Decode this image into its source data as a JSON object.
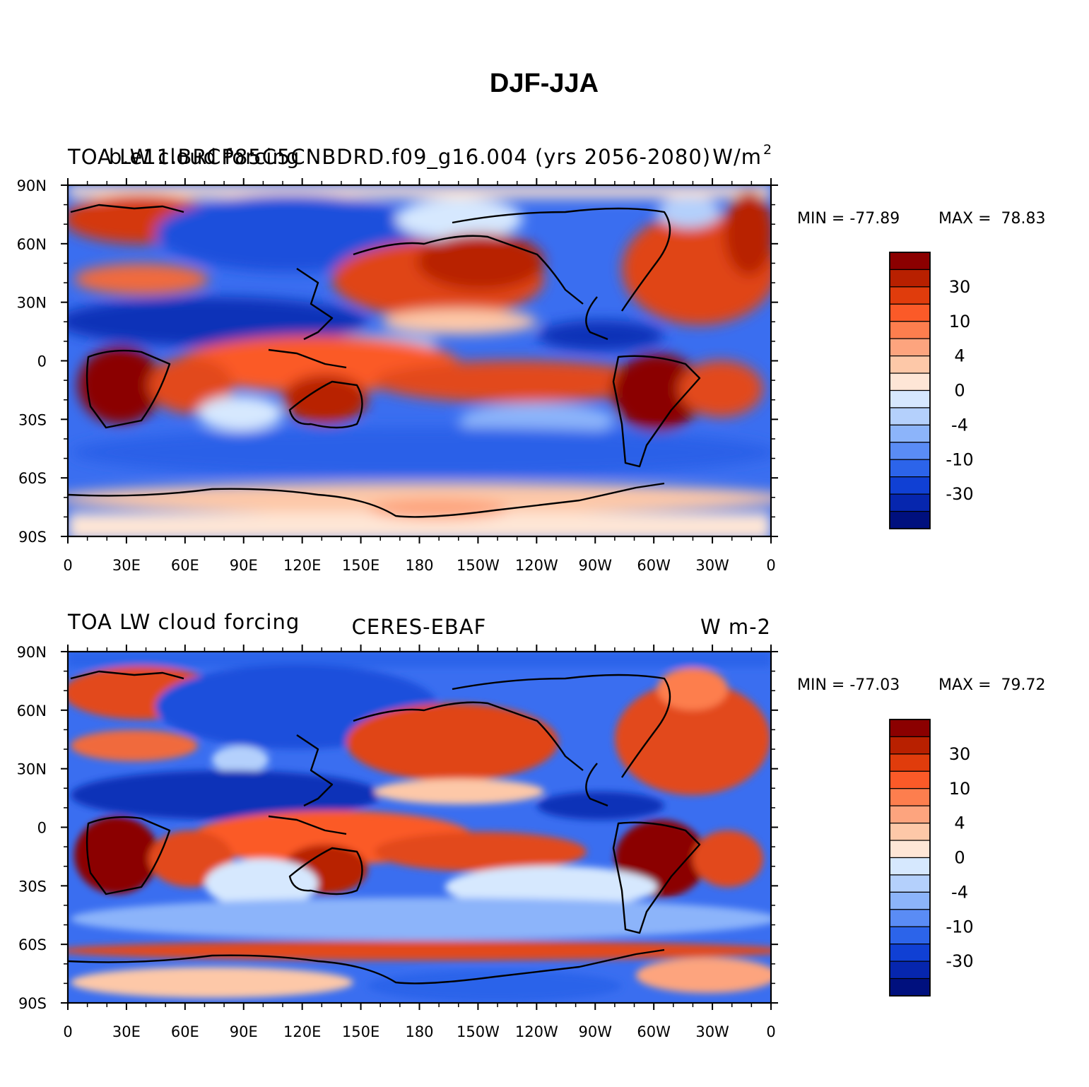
{
  "chart_data": {
    "type": "heatmap",
    "title": "DJF-JJA",
    "x_ticks": [
      "0",
      "30E",
      "60E",
      "90E",
      "120E",
      "150E",
      "180",
      "150W",
      "120W",
      "90W",
      "60W",
      "30W",
      "0"
    ],
    "y_ticks": [
      "90N",
      "60N",
      "30N",
      "0",
      "30S",
      "60S",
      "90S"
    ],
    "xlim": [
      0,
      360
    ],
    "ylim": [
      -90,
      90
    ],
    "colorbar": {
      "labels": [
        "30",
        "10",
        "4",
        "0",
        "-4",
        "-10",
        "-30"
      ],
      "colors": [
        "#8b0000",
        "#b82000",
        "#e03c0c",
        "#fb5a28",
        "#fd7e4e",
        "#fda47e",
        "#fdc8a8",
        "#fee6d6",
        "#d6e8fe",
        "#b4d0fc",
        "#8cb4fa",
        "#5a8cf5",
        "#2c64ea",
        "#1040d4",
        "#0626ae",
        "#00107e"
      ]
    },
    "panels": [
      {
        "name": "model",
        "left_title": "TOA LW cloud forcing",
        "center_title": "b.e11.BRCP85C5CNBDRD.f09_g16.004 (yrs 2056-2080)",
        "right_title_base": "W/m",
        "right_title_sup": "2",
        "min_label": "MIN = -77.89",
        "max_label": "MAX =  78.83",
        "min": -77.89,
        "max": 78.83
      },
      {
        "name": "obs",
        "left_title": "TOA LW cloud forcing",
        "center_title": "CERES-EBAF",
        "right_title_base": "W m-2",
        "right_title_sup": "",
        "min_label": "MIN = -77.03",
        "max_label": "MAX =  79.72",
        "min": -77.03,
        "max": 79.72
      }
    ]
  }
}
